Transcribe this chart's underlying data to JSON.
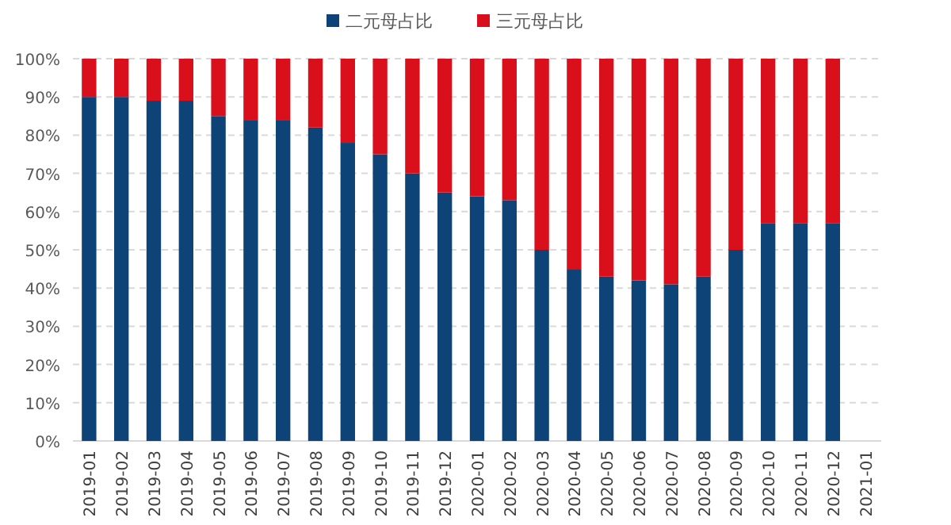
{
  "chart_data": {
    "type": "bar",
    "stacked": true,
    "categories": [
      "2019-01",
      "2019-02",
      "2019-03",
      "2019-04",
      "2019-05",
      "2019-06",
      "2019-07",
      "2019-08",
      "2019-09",
      "2019-10",
      "2019-11",
      "2019-12",
      "2020-01",
      "2020-02",
      "2020-03",
      "2020-04",
      "2020-05",
      "2020-06",
      "2020-07",
      "2020-08",
      "2020-09",
      "2020-10",
      "2020-11",
      "2020-12",
      "2021-01"
    ],
    "series": [
      {
        "name": "二元母占比",
        "color": "#0e4378",
        "values": [
          90,
          90,
          89,
          89,
          85,
          84,
          84,
          82,
          78,
          75,
          70,
          65,
          64,
          63,
          50,
          45,
          43,
          42,
          41,
          43,
          50,
          57,
          57,
          57,
          null
        ]
      },
      {
        "name": "三元母占比",
        "color": "#d9101c",
        "values": [
          10,
          10,
          11,
          11,
          15,
          16,
          16,
          18,
          22,
          25,
          30,
          35,
          36,
          37,
          50,
          55,
          57,
          58,
          59,
          57,
          50,
          43,
          43,
          43,
          null
        ]
      }
    ],
    "ylim": [
      0,
      100
    ],
    "yticks": [
      {
        "value": 0,
        "label": "0%"
      },
      {
        "value": 10,
        "label": "10%"
      },
      {
        "value": 20,
        "label": "20%"
      },
      {
        "value": 30,
        "label": "30%"
      },
      {
        "value": 40,
        "label": "40%"
      },
      {
        "value": 50,
        "label": "50%"
      },
      {
        "value": 60,
        "label": "60%"
      },
      {
        "value": 70,
        "label": "70%"
      },
      {
        "value": 80,
        "label": "80%"
      },
      {
        "value": 90,
        "label": "90%"
      },
      {
        "value": 100,
        "label": "100%"
      }
    ],
    "grid": "y",
    "legend": "top"
  }
}
